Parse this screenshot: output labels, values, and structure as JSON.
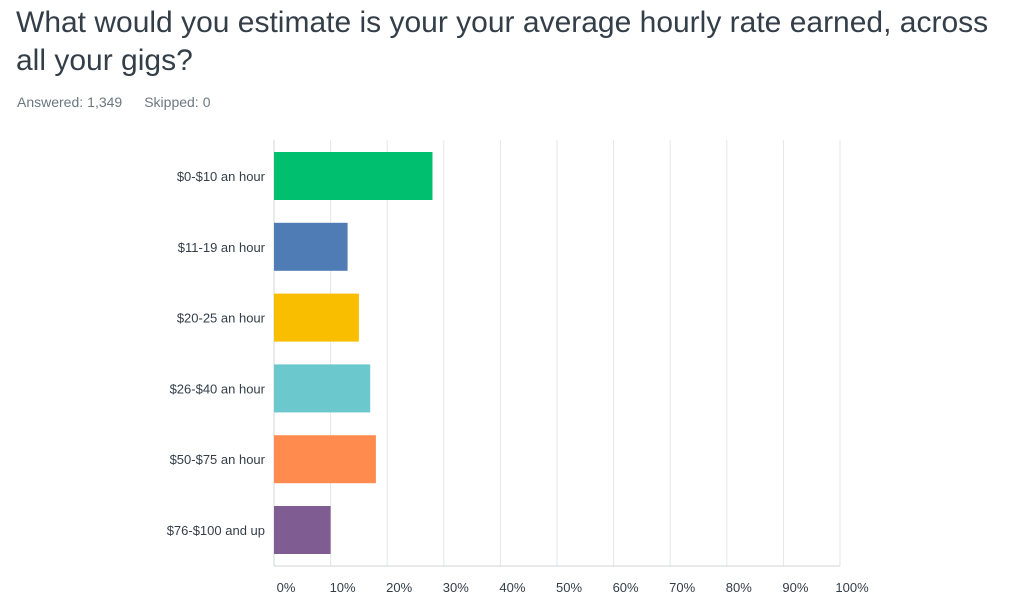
{
  "question": {
    "title": "What would you estimate is your your average hourly rate earned, across all your gigs?"
  },
  "stats": {
    "answered_label": "Answered:",
    "answered_value": "1,349",
    "skipped_label": "Skipped:",
    "skipped_value": "0"
  },
  "chart_data": {
    "type": "bar",
    "orientation": "horizontal",
    "categories": [
      "$0-$10 an hour",
      "$11-19 an hour",
      "$20-25 an hour",
      "$26-$40 an hour",
      "$50-$75 an hour",
      "$76-$100 and up"
    ],
    "values": [
      28,
      13,
      15,
      17,
      18,
      10
    ],
    "colors": [
      "#00bf6f",
      "#507cb6",
      "#f9be00",
      "#6bc8cd",
      "#ff8b4f",
      "#7f5c91"
    ],
    "xlim": [
      0,
      100
    ],
    "xticks": [
      "0%",
      "10%",
      "20%",
      "30%",
      "40%",
      "50%",
      "60%",
      "70%",
      "80%",
      "90%",
      "100%"
    ],
    "grid": true
  }
}
